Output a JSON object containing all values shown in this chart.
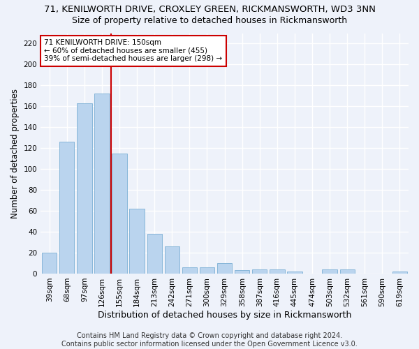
{
  "title": "71, KENILWORTH DRIVE, CROXLEY GREEN, RICKMANSWORTH, WD3 3NN",
  "subtitle": "Size of property relative to detached houses in Rickmansworth",
  "xlabel": "Distribution of detached houses by size in Rickmansworth",
  "ylabel": "Number of detached properties",
  "categories": [
    "39sqm",
    "68sqm",
    "97sqm",
    "126sqm",
    "155sqm",
    "184sqm",
    "213sqm",
    "242sqm",
    "271sqm",
    "300sqm",
    "329sqm",
    "358sqm",
    "387sqm",
    "416sqm",
    "445sqm",
    "474sqm",
    "503sqm",
    "532sqm",
    "561sqm",
    "590sqm",
    "619sqm"
  ],
  "values": [
    20,
    126,
    163,
    172,
    115,
    62,
    38,
    26,
    6,
    6,
    10,
    3,
    4,
    4,
    2,
    0,
    4,
    4,
    0,
    0,
    2
  ],
  "bar_color": "#bad4ee",
  "bar_edge_color": "#7bafd4",
  "property_line_x": 3.5,
  "property_label": "71 KENILWORTH DRIVE: 150sqm",
  "annotation_line1": "← 60% of detached houses are smaller (455)",
  "annotation_line2": "39% of semi-detached houses are larger (298) →",
  "annotation_box_facecolor": "#ffffff",
  "annotation_box_edgecolor": "#cc0000",
  "vline_color": "#cc0000",
  "ylim": [
    0,
    230
  ],
  "yticks": [
    0,
    20,
    40,
    60,
    80,
    100,
    120,
    140,
    160,
    180,
    200,
    220
  ],
  "background_color": "#eef2fa",
  "grid_color": "#ffffff",
  "footer1": "Contains HM Land Registry data © Crown copyright and database right 2024.",
  "footer2": "Contains public sector information licensed under the Open Government Licence v3.0.",
  "title_fontsize": 9.5,
  "subtitle_fontsize": 9,
  "xlabel_fontsize": 9,
  "ylabel_fontsize": 8.5,
  "tick_fontsize": 7.5,
  "annot_fontsize": 7.5,
  "footer_fontsize": 7
}
